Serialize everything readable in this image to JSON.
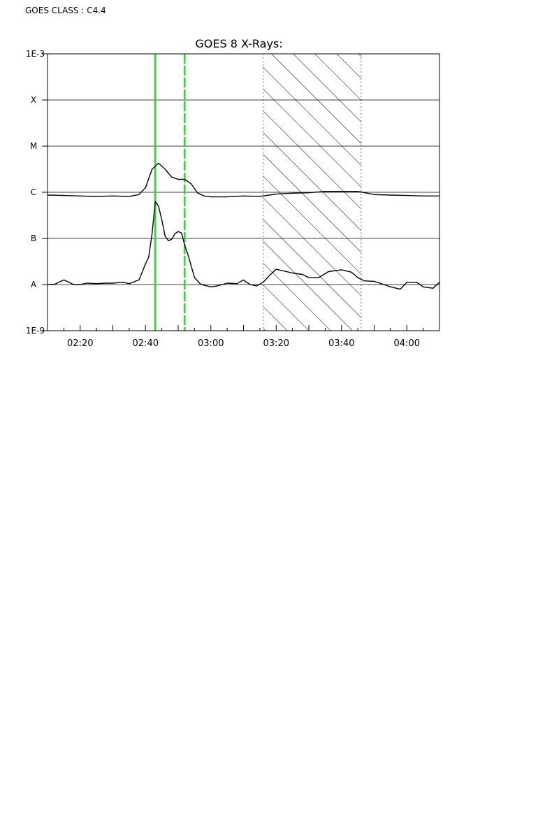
{
  "header": {
    "goes_class_text": "GOES CLASS : C4.4"
  },
  "colors": {
    "curve": "#000000",
    "marker": "#22dd22",
    "hatch_border": "#888888",
    "grid": "#000000"
  },
  "chart_data": {
    "type": "line",
    "title": "GOES 8 X-Rays:",
    "y_scale": "log",
    "ylim": [
      "1E-9",
      "1E-3"
    ],
    "y_tick_labels": [
      "1E-3",
      "X",
      "M",
      "C",
      "B",
      "A",
      "1E-9"
    ],
    "y_tick_exponents": [
      -3,
      -4,
      -5,
      -6,
      -7,
      -8,
      -9
    ],
    "class_gridlines": [
      "X",
      "M",
      "C",
      "B",
      "A"
    ],
    "xlim": [
      "02:10",
      "04:10"
    ],
    "x_tick_labels": [
      "02:20",
      "02:40",
      "03:00",
      "03:20",
      "03:40",
      "04:00"
    ],
    "x_minor_ticks_every_min": 5,
    "grid": true,
    "legend": "none",
    "vertical_markers": [
      {
        "time": "02:43",
        "style": "solid",
        "color": "green"
      },
      {
        "time": "02:52",
        "style": "dashed",
        "color": "green"
      }
    ],
    "shaded_interval": {
      "start": "03:16",
      "end": "03:46",
      "pattern": "diagonal-hatch",
      "border": "dotted"
    },
    "series": [
      {
        "x": [
          "02:10",
          "02:15",
          "02:20",
          "02:25",
          "02:30",
          "02:35",
          "02:38",
          "02:40",
          "02:42",
          "02:44",
          "02:46",
          "02:48",
          "02:50",
          "02:52",
          "02:54",
          "02:56",
          "02:58",
          "03:00",
          "03:05",
          "03:10",
          "03:15",
          "03:20",
          "03:25",
          "03:30",
          "03:35",
          "03:40",
          "03:45",
          "03:50",
          "03:55",
          "04:00",
          "04:05",
          "04:10"
        ],
        "y": [
          -6.06,
          -6.07,
          -6.08,
          -6.09,
          -6.08,
          -6.09,
          -6.05,
          -5.9,
          -5.5,
          -5.37,
          -5.5,
          -5.67,
          -5.72,
          -5.72,
          -5.82,
          -6.02,
          -6.08,
          -6.1,
          -6.1,
          -6.08,
          -6.09,
          -6.04,
          -6.02,
          -6.01,
          -5.98,
          -5.98,
          -5.98,
          -6.05,
          -6.06,
          -6.07,
          -6.08,
          -6.08
        ]
      },
      {
        "x": [
          "02:10",
          "02:12",
          "02:15",
          "02:18",
          "02:20",
          "02:22",
          "02:25",
          "02:28",
          "02:30",
          "02:33",
          "02:35",
          "02:38",
          "02:40",
          "02:41",
          "02:42",
          "02:43",
          "02:44",
          "02:45",
          "02:46",
          "02:47",
          "02:48",
          "02:49",
          "02:50",
          "02:51",
          "02:52",
          "02:53",
          "02:55",
          "02:57",
          "03:00",
          "03:02",
          "03:05",
          "03:08",
          "03:10",
          "03:12",
          "03:14",
          "03:16",
          "03:18",
          "03:20",
          "03:22",
          "03:25",
          "03:28",
          "03:30",
          "03:33",
          "03:36",
          "03:40",
          "03:43",
          "03:45",
          "03:47",
          "03:50",
          "03:53",
          "03:55",
          "03:58",
          "04:00",
          "04:03",
          "04:05",
          "04:08",
          "04:10"
        ],
        "y": [
          -8.0,
          -8.0,
          -7.9,
          -8.0,
          -8.0,
          -7.97,
          -7.98,
          -7.97,
          -7.97,
          -7.95,
          -7.98,
          -7.9,
          -7.55,
          -7.4,
          -6.9,
          -6.2,
          -6.3,
          -6.6,
          -6.95,
          -7.05,
          -7.02,
          -6.9,
          -6.85,
          -6.88,
          -7.15,
          -7.35,
          -7.85,
          -8.0,
          -8.05,
          -8.03,
          -7.97,
          -7.98,
          -7.9,
          -8.0,
          -8.03,
          -7.95,
          -7.8,
          -7.67,
          -7.7,
          -7.75,
          -7.78,
          -7.85,
          -7.85,
          -7.72,
          -7.68,
          -7.73,
          -7.85,
          -7.92,
          -7.93,
          -8.0,
          -8.05,
          -8.1,
          -7.95,
          -7.95,
          -8.05,
          -8.08,
          -7.95
        ]
      }
    ]
  }
}
